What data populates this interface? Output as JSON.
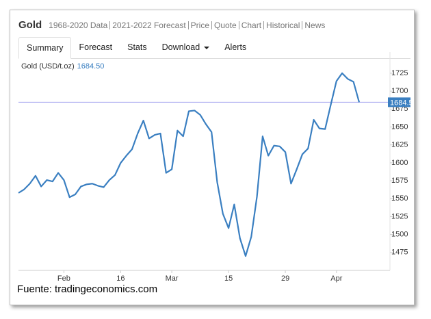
{
  "header": {
    "title": "Gold",
    "links": [
      "1968-2020 Data",
      "2021-2022 Forecast",
      "Price",
      "Quote",
      "Chart",
      "Historical",
      "News"
    ]
  },
  "tabs": [
    "Summary",
    "Forecast",
    "Stats",
    "Download",
    "Alerts"
  ],
  "source": "Fuente: tradingeconomics.com",
  "chart_data": {
    "type": "line",
    "series": [
      {
        "name": "Gold (USD/t.oz)",
        "color": "#3a7fc1",
        "values": [
          1558,
          1563,
          1571,
          1582,
          1567,
          1576,
          1574,
          1586,
          1576,
          1552,
          1556,
          1567,
          1570,
          1571,
          1568,
          1566,
          1576,
          1583,
          1600,
          1610,
          1619,
          1641,
          1659,
          1634,
          1639,
          1641,
          1586,
          1591,
          1645,
          1637,
          1672,
          1673,
          1667,
          1654,
          1643,
          1573,
          1529,
          1509,
          1542,
          1495,
          1470,
          1497,
          1553,
          1637,
          1610,
          1624,
          1623,
          1615,
          1571,
          1591,
          1612,
          1620,
          1660,
          1648,
          1647,
          1681,
          1714,
          1725,
          1717,
          1713,
          1684.5
        ]
      }
    ],
    "categories": [
      null,
      null,
      null,
      null,
      null,
      null,
      null,
      null,
      "Feb",
      null,
      null,
      null,
      null,
      null,
      null,
      null,
      null,
      null,
      "16",
      null,
      null,
      null,
      null,
      null,
      null,
      null,
      null,
      "Mar",
      null,
      null,
      null,
      null,
      null,
      null,
      null,
      null,
      null,
      "15",
      null,
      null,
      null,
      null,
      null,
      null,
      null,
      null,
      null,
      "29",
      null,
      null,
      null,
      null,
      null,
      null,
      null,
      null,
      "Apr",
      null,
      null,
      null,
      null
    ],
    "ylim": [
      1450,
      1745
    ],
    "yticks": [
      1475,
      1500,
      1525,
      1550,
      1575,
      1600,
      1625,
      1650,
      1675,
      1700,
      1725
    ],
    "grid": false,
    "reference_line": {
      "value": 1684.5,
      "label": "1684.50",
      "color": "#a8a8f0"
    }
  }
}
